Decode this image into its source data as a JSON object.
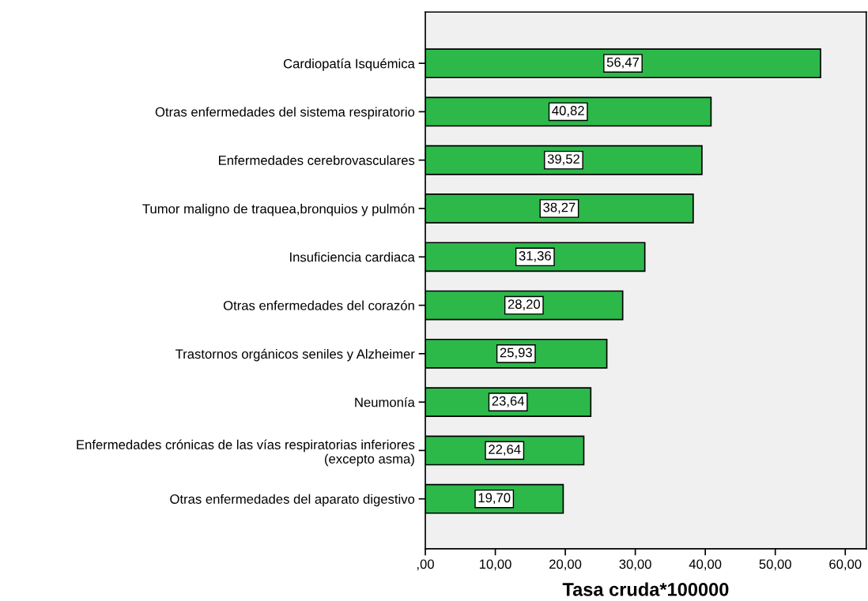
{
  "chart_data": {
    "type": "bar",
    "orientation": "horizontal",
    "xlabel": "Tasa cruda*100000",
    "categories": [
      "Cardiopatía Isquémica",
      "Otras enfermedades del sistema respiratorio",
      "Enfermedades cerebrovasculares",
      "Tumor maligno de traquea,bronquios y pulmón",
      "Insuficiencia cardiaca",
      "Otras enfermedades del corazón",
      "Trastornos orgánicos seniles y Alzheimer",
      "Neumonía",
      "Enfermedades crónicas de las vías respiratorias inferiores\n(excepto asma)",
      "Otras enfermedades del aparato digestivo"
    ],
    "values": [
      56.47,
      40.82,
      39.52,
      38.27,
      31.36,
      28.2,
      25.93,
      23.64,
      22.64,
      19.7
    ],
    "value_labels": [
      "56,47",
      "40,82",
      "39,52",
      "38,27",
      "31,36",
      "28,20",
      "25,93",
      "23,64",
      "22,64",
      "19,70"
    ],
    "color": "#2db84a",
    "xlim": [
      0,
      63
    ],
    "xticks": [
      {
        "value": 0,
        "label": ",00"
      },
      {
        "value": 10,
        "label": "10,00"
      },
      {
        "value": 20,
        "label": "20,00"
      },
      {
        "value": 30,
        "label": "30,00"
      },
      {
        "value": 40,
        "label": "40,00"
      },
      {
        "value": 50,
        "label": "50,00"
      },
      {
        "value": 60,
        "label": "60,00"
      }
    ],
    "grid": false,
    "legend": false
  }
}
